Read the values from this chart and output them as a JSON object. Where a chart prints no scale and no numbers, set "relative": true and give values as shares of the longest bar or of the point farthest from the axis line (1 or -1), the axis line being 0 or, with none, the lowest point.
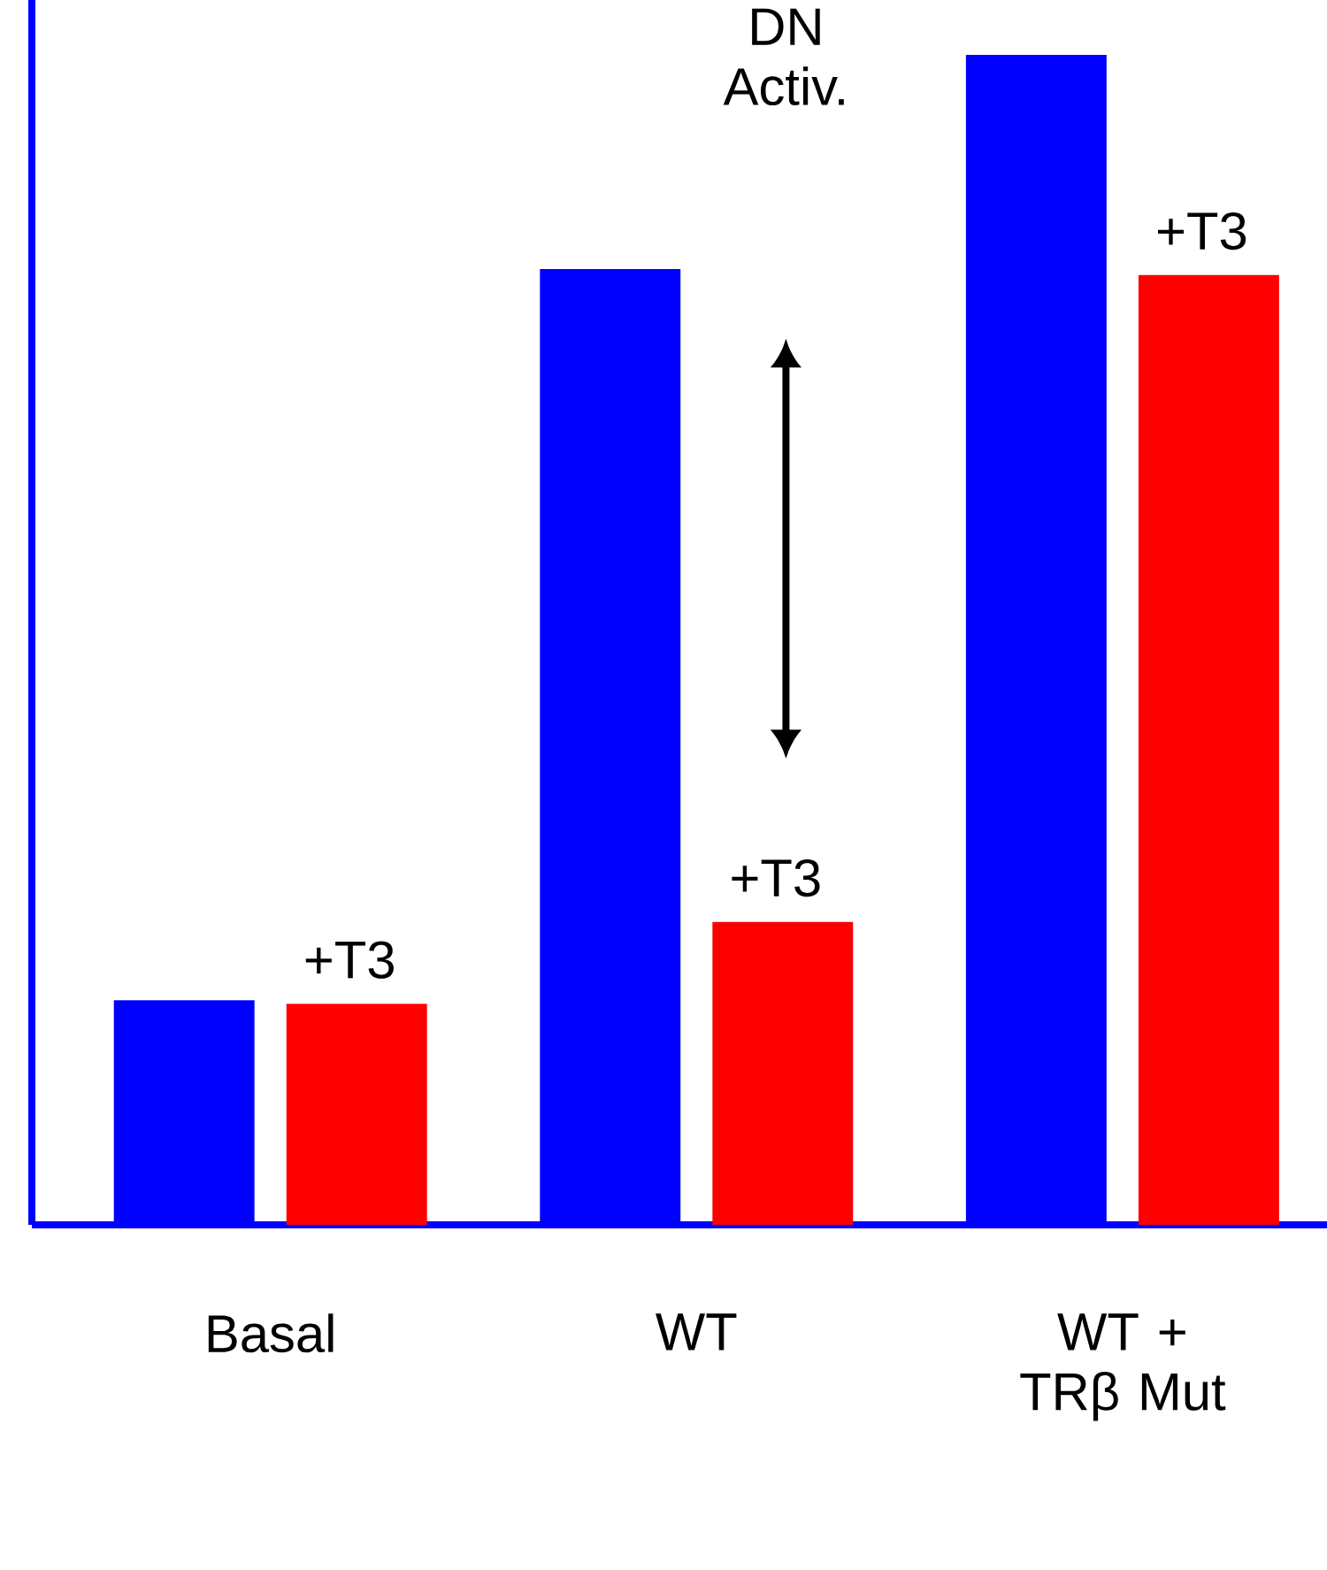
{
  "chart_data": {
    "type": "bar",
    "relative": true,
    "categories": [
      "Basal",
      "WT",
      "WT + TRβ Mut"
    ],
    "series": [
      {
        "color": "#0000ff",
        "values": [
          0.192,
          0.817,
          1
        ]
      },
      {
        "name": "+T3",
        "color": "#ff0000",
        "values": [
          0.189,
          0.259,
          0.812
        ]
      }
    ],
    "annotations": [
      "DN Activ."
    ]
  }
}
